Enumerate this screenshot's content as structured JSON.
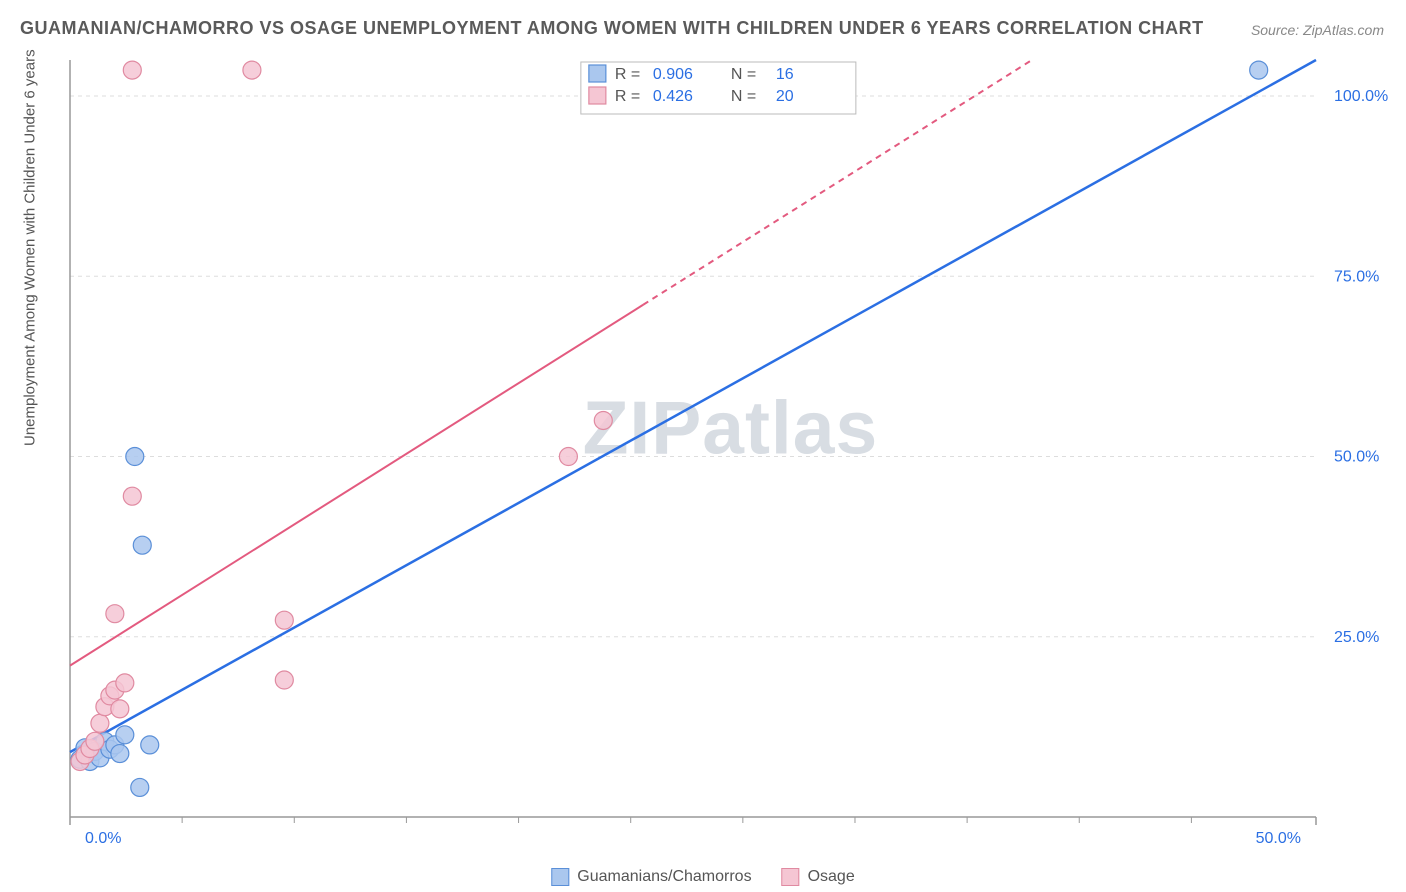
{
  "title": "GUAMANIAN/CHAMORRO VS OSAGE UNEMPLOYMENT AMONG WOMEN WITH CHILDREN UNDER 6 YEARS CORRELATION CHART",
  "source": "Source: ZipAtlas.com",
  "watermark": "ZIPatlas",
  "y_axis_label": "Unemployment Among Women with Children Under 6 years",
  "chart": {
    "type": "scatter",
    "xlim": [
      0,
      50
    ],
    "ylim": [
      0,
      105
    ],
    "x_ticks": [
      0,
      50
    ],
    "x_tick_labels": [
      "0.0%",
      "50.0%"
    ],
    "x_minor_ticks": [
      4.5,
      9,
      13.5,
      18,
      22.5,
      27,
      31.5,
      36,
      40.5,
      45
    ],
    "y_ticks": [
      25,
      50,
      75,
      100
    ],
    "y_tick_labels": [
      "25.0%",
      "50.0%",
      "75.0%",
      "100.0%"
    ],
    "grid_color": "#dddddd",
    "axis_color": "#999999",
    "background_color": "#ffffff",
    "marker_radius": 9,
    "marker_stroke_width": 1.2,
    "series": [
      {
        "name": "Guamanians/Chamorros",
        "fill": "#aac7ee",
        "stroke": "#5a8fd8",
        "r_value": "0.906",
        "n_value": "16",
        "trend": {
          "x1": 0,
          "y1": 9,
          "x2": 50,
          "y2": 105,
          "stroke": "#2b6fe3",
          "width": 2.5,
          "dash": ""
        },
        "points": [
          [
            0.4,
            8.0
          ],
          [
            0.6,
            9.6
          ],
          [
            0.8,
            7.7
          ],
          [
            1.0,
            9.1
          ],
          [
            1.2,
            8.2
          ],
          [
            1.4,
            10.5
          ],
          [
            1.6,
            9.4
          ],
          [
            1.8,
            10.0
          ],
          [
            2.0,
            8.8
          ],
          [
            2.2,
            11.4
          ],
          [
            2.8,
            4.1
          ],
          [
            3.2,
            10.0
          ],
          [
            2.9,
            37.7
          ],
          [
            2.6,
            50.0
          ],
          [
            47.7,
            103.6
          ]
        ]
      },
      {
        "name": "Osage",
        "fill": "#f5c6d3",
        "stroke": "#e08aa1",
        "r_value": "0.426",
        "n_value": "20",
        "trend": {
          "x1": 0,
          "y1": 21,
          "x2": 38.6,
          "y2": 105,
          "stroke": "#e35a7f",
          "width": 2.0,
          "dash": "6 5",
          "solid_until_x": 23
        },
        "points": [
          [
            0.4,
            7.7
          ],
          [
            0.6,
            8.6
          ],
          [
            0.8,
            9.5
          ],
          [
            1.0,
            10.5
          ],
          [
            1.2,
            13.0
          ],
          [
            1.4,
            15.3
          ],
          [
            1.6,
            16.8
          ],
          [
            1.8,
            17.6
          ],
          [
            2.0,
            15.0
          ],
          [
            2.2,
            18.6
          ],
          [
            1.8,
            28.2
          ],
          [
            2.5,
            44.5
          ],
          [
            8.6,
            19.0
          ],
          [
            8.6,
            27.3
          ],
          [
            2.5,
            103.6
          ],
          [
            7.3,
            103.6
          ],
          [
            20.0,
            50.0
          ],
          [
            21.4,
            55.0
          ]
        ]
      }
    ]
  },
  "legend_bottom": [
    {
      "label": "Guamanians/Chamorros",
      "fill": "#aac7ee",
      "stroke": "#5a8fd8"
    },
    {
      "label": "Osage",
      "fill": "#f5c6d3",
      "stroke": "#e08aa1"
    }
  ]
}
